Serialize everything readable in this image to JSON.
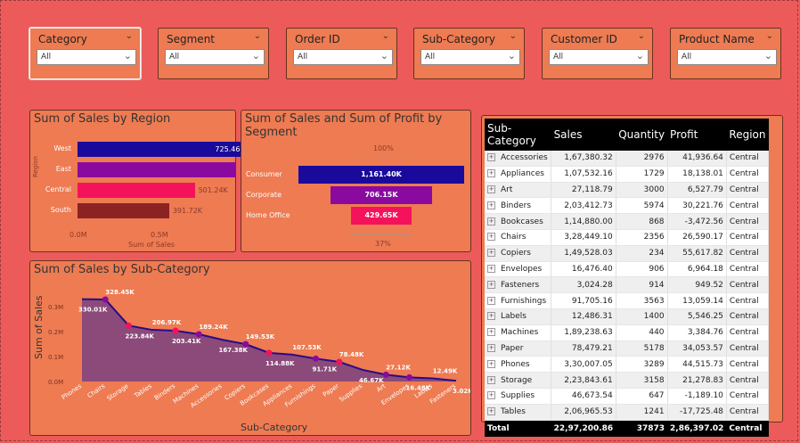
{
  "slicers": [
    {
      "title": "Category",
      "value": "All"
    },
    {
      "title": "Segment",
      "value": "All"
    },
    {
      "title": "Order ID",
      "value": "All"
    },
    {
      "title": "Sub-Category",
      "value": "All"
    },
    {
      "title": "Customer ID",
      "value": "All"
    },
    {
      "title": "Product Name",
      "value": "All"
    }
  ],
  "region_chart": {
    "title": "Sum of Sales by Region",
    "ylabel": "Region",
    "xlabel": "Sum of Sales",
    "ticks": [
      "0.0M",
      "0.5M"
    ],
    "bars": [
      {
        "label": "West",
        "value_label": "725.46K",
        "value": 725.46,
        "color": "#1a0a9c"
      },
      {
        "label": "East",
        "value_label": "678.78K",
        "value": 678.78,
        "color": "#8a0aa0"
      },
      {
        "label": "Central",
        "value_label": "501.24K",
        "value": 501.24,
        "color": "#f5125c"
      },
      {
        "label": "South",
        "value_label": "391.72K",
        "value": 391.72,
        "color": "#8b2323"
      }
    ]
  },
  "segment_chart": {
    "title": "Sum of Sales and Sum of Profit by Segment",
    "top_pct": "100%",
    "bottom_pct": "37%",
    "bars": [
      {
        "label": "Consumer",
        "value_label": "1,161.40K",
        "value": 1161.4,
        "color": "#1a0a9c"
      },
      {
        "label": "Corporate",
        "value_label": "706.15K",
        "value": 706.15,
        "color": "#8a0aa0"
      },
      {
        "label": "Home Office",
        "value_label": "429.65K",
        "value": 429.65,
        "color": "#f5125c"
      }
    ]
  },
  "chart_data": {
    "type": "area",
    "title": "Sum of Sales by Sub-Category",
    "xlabel": "Sub-Category",
    "ylabel": "Sum of Sales",
    "yticks": [
      "0.0M",
      "0.1M",
      "0.2M",
      "0.3M"
    ],
    "ylim": [
      0,
      0.35
    ],
    "categories": [
      "Phones",
      "Chairs",
      "Storage",
      "Tables",
      "Binders",
      "Machines",
      "Accessories",
      "Copiers",
      "Bookcases",
      "Appliances",
      "Furnishings",
      "Paper",
      "Supplies",
      "Art",
      "Envelopes",
      "Labels",
      "Fasteners"
    ],
    "values": [
      330.01,
      328.45,
      223.84,
      206.97,
      203.41,
      189.24,
      167.38,
      149.53,
      114.88,
      107.53,
      91.71,
      78.48,
      46.67,
      27.12,
      16.48,
      12.49,
      3.02
    ],
    "value_labels": [
      "330.01K",
      "328.45K",
      "223.84K",
      "206.97K",
      "203.41K",
      "189.24K",
      "167.38K",
      "149.53K",
      "114.88K",
      "107.53K",
      "91.71K",
      "78.48K",
      "46.67K",
      "27.12K",
      "16.48K",
      "12.49K",
      "3.02K"
    ],
    "colors": {
      "area": "#8b4a7a",
      "line": "#2a0a8a"
    }
  },
  "table": {
    "headers": [
      "Sub-Category",
      "Sales",
      "Quantity",
      "Profit",
      "Region"
    ],
    "rows": [
      [
        "Accessories",
        "1,67,380.32",
        "2976",
        "41,936.64",
        "Central"
      ],
      [
        "Appliances",
        "1,07,532.16",
        "1729",
        "18,138.01",
        "Central"
      ],
      [
        "Art",
        "27,118.79",
        "3000",
        "6,527.79",
        "Central"
      ],
      [
        "Binders",
        "2,03,412.73",
        "5974",
        "30,221.76",
        "Central"
      ],
      [
        "Bookcases",
        "1,14,880.00",
        "868",
        "-3,472.56",
        "Central"
      ],
      [
        "Chairs",
        "3,28,449.10",
        "2356",
        "26,590.17",
        "Central"
      ],
      [
        "Copiers",
        "1,49,528.03",
        "234",
        "55,617.82",
        "Central"
      ],
      [
        "Envelopes",
        "16,476.40",
        "906",
        "6,964.18",
        "Central"
      ],
      [
        "Fasteners",
        "3,024.28",
        "914",
        "949.52",
        "Central"
      ],
      [
        "Furnishings",
        "91,705.16",
        "3563",
        "13,059.14",
        "Central"
      ],
      [
        "Labels",
        "12,486.31",
        "1400",
        "5,546.25",
        "Central"
      ],
      [
        "Machines",
        "1,89,238.63",
        "440",
        "3,384.76",
        "Central"
      ],
      [
        "Paper",
        "78,479.21",
        "5178",
        "34,053.57",
        "Central"
      ],
      [
        "Phones",
        "3,30,007.05",
        "3289",
        "44,515.73",
        "Central"
      ],
      [
        "Storage",
        "2,23,843.61",
        "3158",
        "21,278.83",
        "Central"
      ],
      [
        "Supplies",
        "46,673.54",
        "647",
        "-1,189.10",
        "Central"
      ],
      [
        "Tables",
        "2,06,965.53",
        "1241",
        "-17,725.48",
        "Central"
      ]
    ],
    "total": [
      "Total",
      "22,97,200.86",
      "37873",
      "2,86,397.02",
      "Central"
    ]
  }
}
